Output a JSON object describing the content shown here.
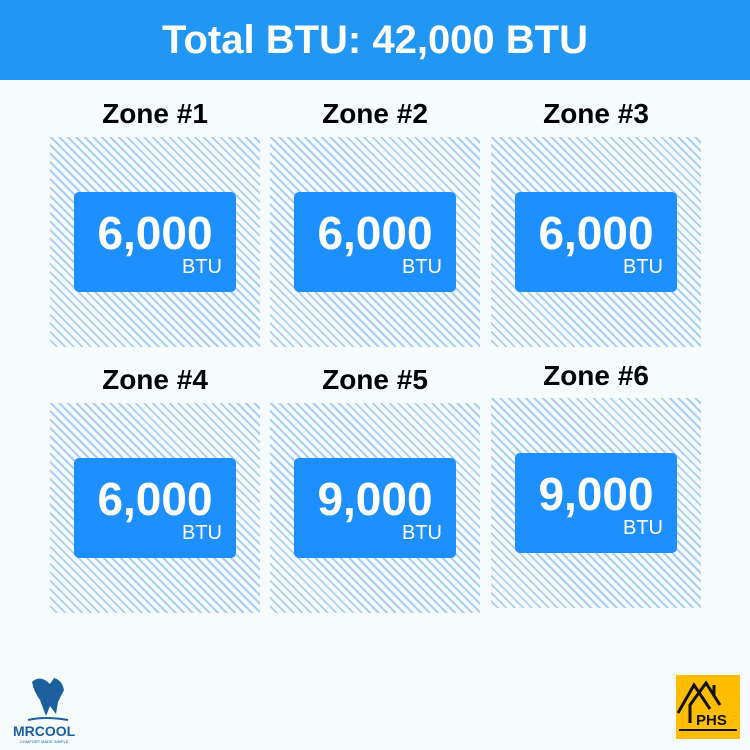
{
  "header": {
    "title": "Total BTU: 42,000 BTU"
  },
  "zones": [
    {
      "title": "Zone #1",
      "value": "6,000",
      "unit": "BTU"
    },
    {
      "title": "Zone #2",
      "value": "6,000",
      "unit": "BTU"
    },
    {
      "title": "Zone #3",
      "value": "6,000",
      "unit": "BTU"
    },
    {
      "title": "Zone #4",
      "value": "6,000",
      "unit": "BTU"
    },
    {
      "title": "Zone #5",
      "value": "9,000",
      "unit": "BTU"
    },
    {
      "title": "Zone #6",
      "value": "9,000",
      "unit": "BTU"
    }
  ],
  "logos": {
    "mrcool": "MRCOOL",
    "mrcool_tagline": "COMFORT MADE SIMPLE",
    "phs": "PHS"
  },
  "colors": {
    "header": "#2196f3",
    "box": "#1e8ffe",
    "hatch": "#a9d0f4"
  }
}
